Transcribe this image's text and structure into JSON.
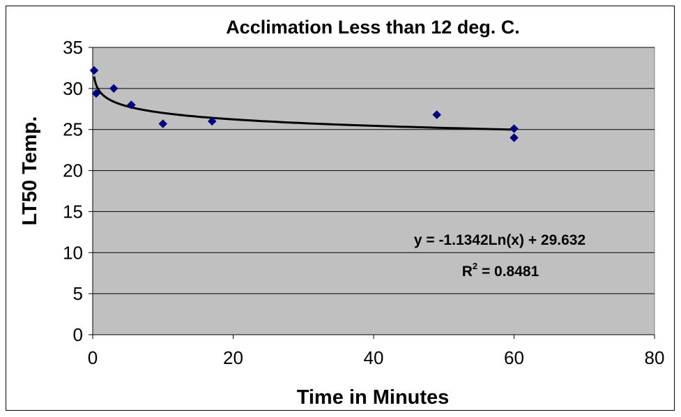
{
  "chart_data": {
    "type": "scatter",
    "title": "Acclimation Less than 12 deg. C.",
    "xlabel": "Time in Minutes",
    "ylabel": "LT50 Temp.",
    "xlim": [
      0,
      80
    ],
    "ylim": [
      0,
      35
    ],
    "x_ticks": [
      0,
      20,
      40,
      60,
      80
    ],
    "y_ticks": [
      0,
      5,
      10,
      15,
      20,
      25,
      30,
      35
    ],
    "grid": "horizontal",
    "plot_background": "#c0c0c0",
    "marker_color": "#000080",
    "marker_shape": "diamond",
    "series": [
      {
        "points": [
          {
            "x": 0.2,
            "y": 32.2
          },
          {
            "x": 0.5,
            "y": 29.4
          },
          {
            "x": 3,
            "y": 30.0
          },
          {
            "x": 5.5,
            "y": 28.0
          },
          {
            "x": 10,
            "y": 25.7
          },
          {
            "x": 17,
            "y": 26.0
          },
          {
            "x": 49,
            "y": 26.8
          },
          {
            "x": 60,
            "y": 25.1
          },
          {
            "x": 60,
            "y": 24.0
          }
        ]
      }
    ],
    "trendline": {
      "type": "logarithmic",
      "a": -1.1342,
      "b": 29.632,
      "x_range": [
        0.2,
        60
      ],
      "color": "#000000"
    },
    "annotations": {
      "equation": "y = -1.1342Ln(x) + 29.632",
      "r_squared_prefix": "R",
      "r_squared_exp": "2",
      "r_squared_value": " = 0.8481"
    }
  }
}
